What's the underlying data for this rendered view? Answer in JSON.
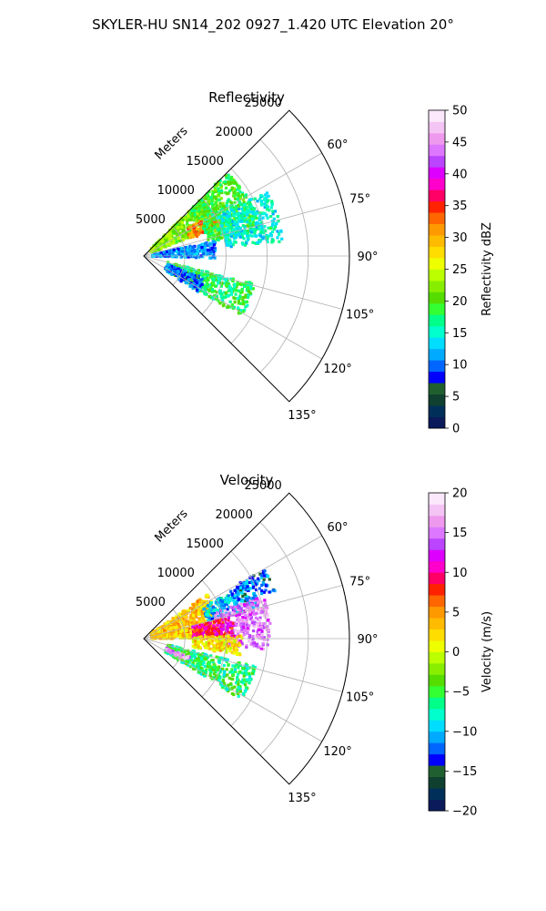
{
  "figure": {
    "title": "SKYLER-HU  SN14_202  0927_1.420 UTC Elevation 20°"
  },
  "chart_data": [
    {
      "type": "polar-sector",
      "title": "Reflectivity",
      "radial_label": "Meters",
      "radial_ticks": [
        "5000",
        "10000",
        "15000",
        "20000",
        "25000"
      ],
      "radial_tick_values": [
        5000,
        10000,
        15000,
        20000,
        25000
      ],
      "angle_ticks": [
        "60°",
        "75°",
        "90°",
        "105°",
        "120°",
        "135°"
      ],
      "angle_tick_values": [
        60,
        75,
        90,
        105,
        120,
        135
      ],
      "theta_range_deg": [
        45,
        135
      ],
      "r_max": 25000,
      "colorbar": {
        "label": "Reflectivity dBZ",
        "range": [
          0,
          50
        ],
        "ticks": [
          "0",
          "5",
          "10",
          "15",
          "20",
          "25",
          "30",
          "35",
          "40",
          "45",
          "50"
        ],
        "tick_values": [
          0,
          5,
          10,
          15,
          20,
          25,
          30,
          35,
          40,
          45,
          50
        ],
        "colors": [
          "#0a1a5a",
          "#00305a",
          "#104030",
          "#206030",
          "#0000ff",
          "#0066ff",
          "#00aaff",
          "#00ddff",
          "#00ffcc",
          "#00ff88",
          "#33ff33",
          "#55dd00",
          "#88ee00",
          "#bbff00",
          "#eeff00",
          "#ffdd00",
          "#ffbb00",
          "#ff9900",
          "#ff6600",
          "#ff2200",
          "#ff0066",
          "#ff00cc",
          "#dd00ff",
          "#bb44ff",
          "#dd77ff",
          "#ee99ee",
          "#f4c4f4",
          "#fbe8fb"
        ]
      },
      "regions": [
        {
          "theta": [
            40,
            68
          ],
          "r": [
            1000,
            11000
          ],
          "value": 22
        },
        {
          "theta": [
            58,
            70
          ],
          "r": [
            6000,
            10000
          ],
          "value": 32
        },
        {
          "theta": [
            45,
            78
          ],
          "r": [
            8000,
            14500
          ],
          "value": 19
        },
        {
          "theta": [
            62,
            84
          ],
          "r": [
            10000,
            17000
          ],
          "value": 15
        },
        {
          "theta": [
            78,
            92
          ],
          "r": [
            1000,
            9000
          ],
          "value": 11
        },
        {
          "theta": [
            104,
            122
          ],
          "r": [
            3000,
            14000
          ],
          "value": 18
        },
        {
          "theta": [
            110,
            124
          ],
          "r": [
            3000,
            8000
          ],
          "value": 10
        }
      ]
    },
    {
      "type": "polar-sector",
      "title": "Velocity",
      "radial_label": "Meters",
      "radial_ticks": [
        "5000",
        "10000",
        "15000",
        "20000",
        "25000"
      ],
      "radial_tick_values": [
        5000,
        10000,
        15000,
        20000,
        25000
      ],
      "angle_ticks": [
        "60°",
        "75°",
        "90°",
        "105°",
        "120°",
        "135°"
      ],
      "angle_tick_values": [
        60,
        75,
        90,
        105,
        120,
        135
      ],
      "theta_range_deg": [
        45,
        135
      ],
      "r_max": 25000,
      "colorbar": {
        "label": "Velocity (m/s)",
        "range": [
          -20,
          20
        ],
        "ticks": [
          "−20",
          "−15",
          "−10",
          "−5",
          "0",
          "5",
          "10",
          "15",
          "20"
        ],
        "tick_values": [
          -20,
          -15,
          -10,
          -5,
          0,
          5,
          10,
          15,
          20
        ],
        "colors": [
          "#0a1a5a",
          "#00305a",
          "#104030",
          "#206030",
          "#0000ff",
          "#0066ff",
          "#00aaff",
          "#00ddff",
          "#00ffcc",
          "#00ff88",
          "#33ff33",
          "#55dd00",
          "#88ee00",
          "#bbff00",
          "#eeff00",
          "#ffdd00",
          "#ffbb00",
          "#ff9900",
          "#ff6600",
          "#ff2200",
          "#ff0066",
          "#ff00cc",
          "#dd00ff",
          "#bb44ff",
          "#dd77ff",
          "#ee99ee",
          "#f4c4f4",
          "#fbe8fb"
        ]
      },
      "regions": [
        {
          "theta": [
            55,
            90
          ],
          "r": [
            1000,
            9500
          ],
          "value": 3
        },
        {
          "theta": [
            62,
            75
          ],
          "r": [
            8000,
            14500
          ],
          "value": -10
        },
        {
          "theta": [
            70,
            95
          ],
          "r": [
            9000,
            15500
          ],
          "value": 15
        },
        {
          "theta": [
            60,
            70
          ],
          "r": [
            12000,
            17000
          ],
          "value": -12
        },
        {
          "theta": [
            76,
            90
          ],
          "r": [
            6000,
            11000
          ],
          "value": 10
        },
        {
          "theta": [
            88,
            100
          ],
          "r": [
            6000,
            12000
          ],
          "value": 2
        },
        {
          "theta": [
            104,
            122
          ],
          "r": [
            3000,
            14000
          ],
          "value": -6
        },
        {
          "theta": [
            112,
            118
          ],
          "r": [
            3000,
            6000
          ],
          "value": 16
        }
      ]
    }
  ]
}
